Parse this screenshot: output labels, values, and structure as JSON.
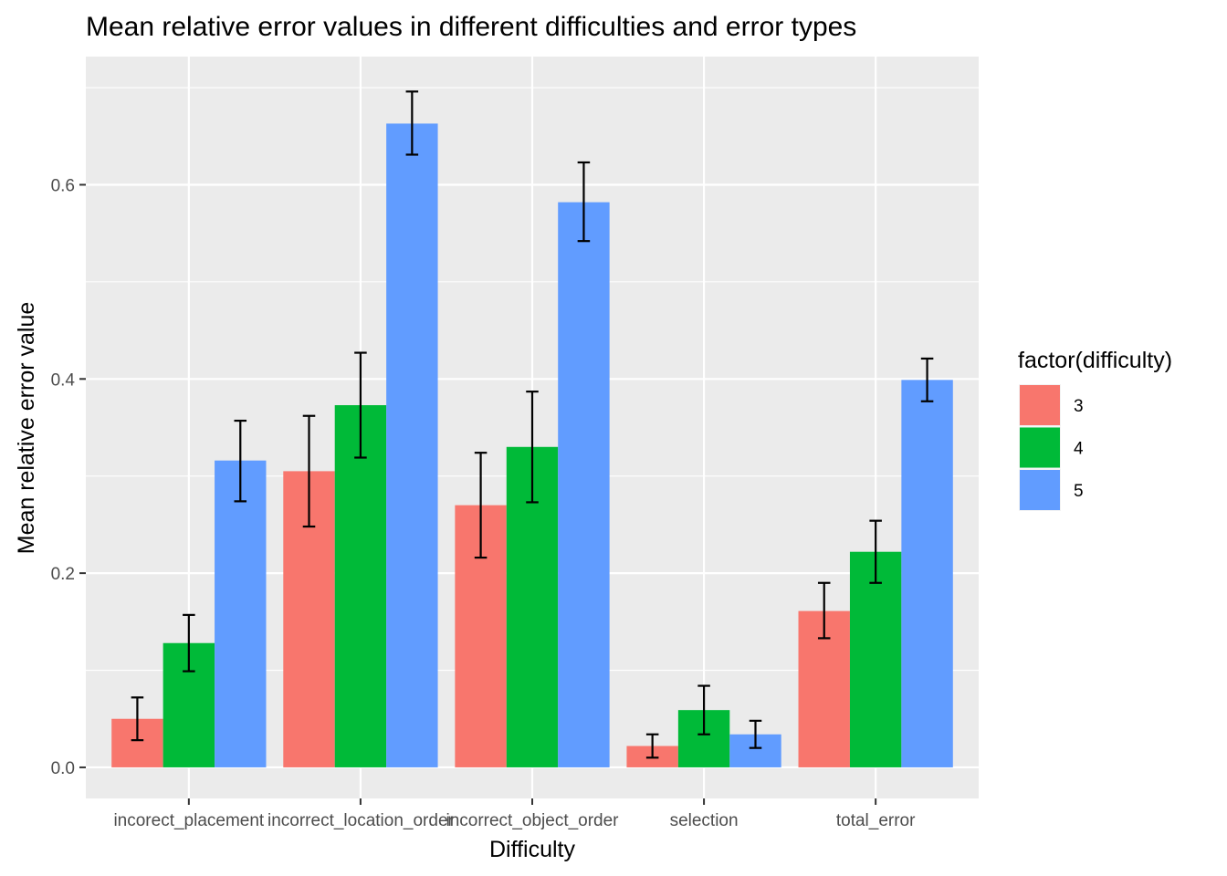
{
  "chart_data": {
    "type": "bar",
    "title": "Mean relative error values in different difficulties and error types",
    "xlabel": "Difficulty",
    "ylabel": "Mean relative error value",
    "categories": [
      "incorect_placement",
      "incorrect_location_order",
      "incorrect_object_order",
      "selection",
      "total_error"
    ],
    "series": [
      {
        "name": "3",
        "color": "#F8766D",
        "values": [
          0.05,
          0.305,
          0.27,
          0.022,
          0.161
        ],
        "err_low": [
          0.028,
          0.248,
          0.216,
          0.01,
          0.133
        ],
        "err_high": [
          0.072,
          0.362,
          0.324,
          0.034,
          0.19
        ]
      },
      {
        "name": "4",
        "color": "#00BA38",
        "values": [
          0.128,
          0.373,
          0.33,
          0.059,
          0.222
        ],
        "err_low": [
          0.099,
          0.319,
          0.273,
          0.034,
          0.19
        ],
        "err_high": [
          0.157,
          0.427,
          0.387,
          0.084,
          0.254
        ]
      },
      {
        "name": "5",
        "color": "#619CFF",
        "values": [
          0.316,
          0.663,
          0.582,
          0.034,
          0.399
        ],
        "err_low": [
          0.274,
          0.631,
          0.542,
          0.02,
          0.377
        ],
        "err_high": [
          0.357,
          0.696,
          0.623,
          0.048,
          0.421
        ]
      }
    ],
    "y_ticks": [
      "0.0",
      "0.2",
      "0.4",
      "0.6"
    ],
    "ylim": [
      -0.032,
      0.732
    ],
    "legend": {
      "title": "factor(difficulty)",
      "placement": "right"
    },
    "grid": true,
    "panel_background": "#EBEBEB"
  }
}
